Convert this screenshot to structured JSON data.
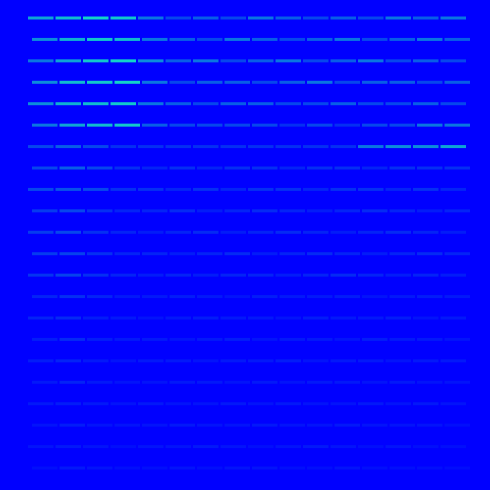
{
  "chart_data": {
    "type": "heatmap",
    "tick_labels": false,
    "color_range": [
      0,
      1
    ],
    "cells": [
      [
        0.7,
        0.8,
        0.9,
        0.85,
        0.5,
        0.3,
        0.4,
        0.3,
        0.5,
        0.4,
        0.3,
        0.4,
        0.3,
        0.5,
        0.4,
        0.5
      ],
      [
        0.6,
        0.75,
        0.85,
        0.8,
        0.5,
        0.4,
        0.3,
        0.5,
        0.4,
        0.3,
        0.4,
        0.5,
        0.3,
        0.4,
        0.5,
        0.4
      ],
      [
        0.5,
        0.7,
        0.85,
        0.9,
        0.6,
        0.4,
        0.5,
        0.3,
        0.4,
        0.5,
        0.3,
        0.4,
        0.5,
        0.3,
        0.4,
        0.3
      ],
      [
        0.6,
        0.8,
        0.85,
        0.9,
        0.5,
        0.3,
        0.4,
        0.4,
        0.3,
        0.4,
        0.5,
        0.3,
        0.4,
        0.4,
        0.3,
        0.4
      ],
      [
        0.6,
        0.75,
        0.8,
        0.85,
        0.5,
        0.4,
        0.3,
        0.4,
        0.4,
        0.3,
        0.3,
        0.4,
        0.3,
        0.3,
        0.4,
        0.3
      ],
      [
        0.5,
        0.7,
        0.8,
        0.85,
        0.4,
        0.3,
        0.3,
        0.3,
        0.3,
        0.2,
        0.3,
        0.2,
        0.3,
        0.3,
        0.5,
        0.5
      ],
      [
        0.3,
        0.4,
        0.3,
        0.2,
        0.2,
        0.2,
        0.2,
        0.2,
        0.2,
        0.2,
        0.2,
        0.2,
        0.5,
        0.6,
        0.6,
        0.7
      ],
      [
        0.3,
        0.4,
        0.3,
        0.2,
        0.15,
        0.2,
        0.15,
        0.2,
        0.2,
        0.15,
        0.2,
        0.2,
        0.15,
        0.2,
        0.2,
        0.2
      ],
      [
        0.3,
        0.35,
        0.3,
        0.2,
        0.2,
        0.15,
        0.2,
        0.15,
        0.2,
        0.2,
        0.15,
        0.2,
        0.2,
        0.15,
        0.2,
        0.15
      ],
      [
        0.25,
        0.3,
        0.2,
        0.15,
        0.15,
        0.18,
        0.12,
        0.15,
        0.18,
        0.15,
        0.12,
        0.15,
        0.18,
        0.15,
        0.12,
        0.15
      ],
      [
        0.25,
        0.3,
        0.2,
        0.15,
        0.12,
        0.15,
        0.18,
        0.12,
        0.15,
        0.18,
        0.15,
        0.12,
        0.15,
        0.18,
        0.15,
        0.12
      ],
      [
        0.25,
        0.28,
        0.2,
        0.15,
        0.15,
        0.12,
        0.15,
        0.18,
        0.12,
        0.15,
        0.18,
        0.15,
        0.12,
        0.15,
        0.18,
        0.15
      ],
      [
        0.22,
        0.28,
        0.2,
        0.15,
        0.12,
        0.15,
        0.12,
        0.15,
        0.15,
        0.12,
        0.15,
        0.18,
        0.15,
        0.12,
        0.15,
        0.12
      ],
      [
        0.15,
        0.2,
        0.15,
        0.1,
        0.1,
        0.12,
        0.1,
        0.08,
        0.12,
        0.1,
        0.1,
        0.12,
        0.08,
        0.1,
        0.12,
        0.1
      ],
      [
        0.15,
        0.18,
        0.12,
        0.1,
        0.08,
        0.1,
        0.12,
        0.1,
        0.1,
        0.08,
        0.12,
        0.1,
        0.1,
        0.12,
        0.08,
        0.1
      ],
      [
        0.12,
        0.18,
        0.12,
        0.1,
        0.1,
        0.08,
        0.1,
        0.12,
        0.08,
        0.1,
        0.1,
        0.08,
        0.12,
        0.1,
        0.1,
        0.08
      ],
      [
        0.12,
        0.15,
        0.1,
        0.08,
        0.1,
        0.1,
        0.08,
        0.1,
        0.1,
        0.12,
        0.08,
        0.1,
        0.1,
        0.08,
        0.1,
        0.1
      ],
      [
        0.1,
        0.15,
        0.1,
        0.08,
        0.08,
        0.1,
        0.1,
        0.08,
        0.1,
        0.08,
        0.1,
        0.1,
        0.08,
        0.1,
        0.08,
        0.08
      ],
      [
        0.1,
        0.12,
        0.1,
        0.08,
        0.1,
        0.08,
        0.08,
        0.1,
        0.08,
        0.1,
        0.08,
        0.08,
        0.1,
        0.08,
        0.1,
        0.08
      ],
      [
        0.08,
        0.12,
        0.08,
        0.08,
        0.08,
        0.1,
        0.08,
        0.08,
        0.1,
        0.08,
        0.08,
        0.1,
        0.08,
        0.08,
        0.08,
        0.06
      ],
      [
        0.08,
        0.1,
        0.08,
        0.06,
        0.08,
        0.08,
        0.1,
        0.08,
        0.06,
        0.08,
        0.1,
        0.08,
        0.06,
        0.08,
        0.06,
        0.06
      ],
      [
        0.06,
        0.1,
        0.08,
        0.06,
        0.06,
        0.08,
        0.06,
        0.08,
        0.08,
        0.06,
        0.06,
        0.08,
        0.06,
        0.06,
        0.06,
        0.05
      ]
    ]
  }
}
